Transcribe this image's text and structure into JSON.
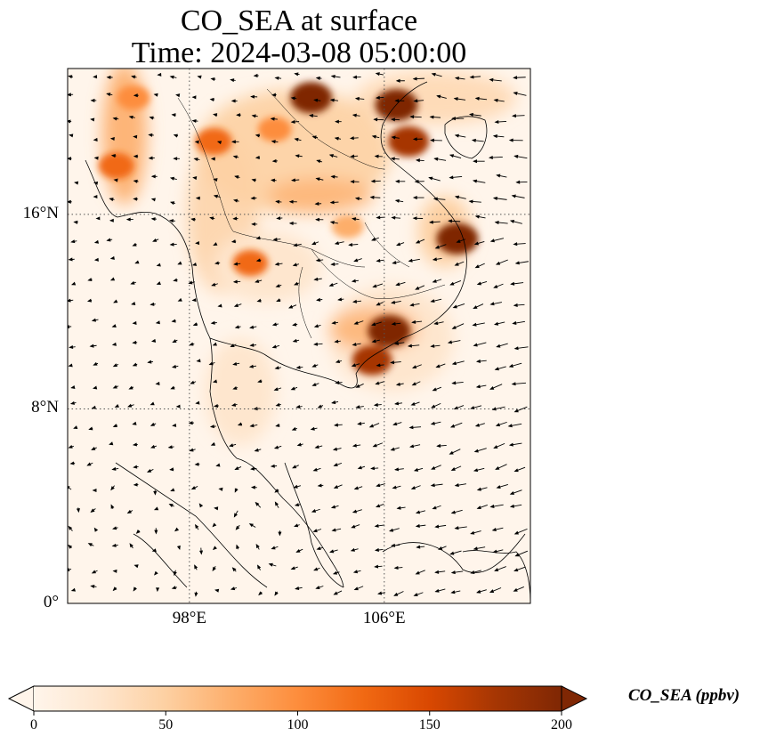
{
  "title": "CO_SEA at surface",
  "subtitle": "Time: 2024-03-08 05:00:00",
  "map": {
    "lon_range": [
      93,
      112
    ],
    "lat_range": [
      0,
      22
    ],
    "lat_ticks": [
      {
        "value": 16,
        "label": "16°N"
      },
      {
        "value": 8,
        "label": "8°N"
      },
      {
        "value": 0,
        "label": "0°"
      }
    ],
    "lon_ticks": [
      {
        "value": 98,
        "label": "98°E"
      },
      {
        "value": 106,
        "label": "106°E"
      }
    ],
    "gridlines": "dotted"
  },
  "colorbar": {
    "label": "CO_SEA (ppbv)",
    "min": 0,
    "max": 200,
    "ticks": [
      {
        "value": 0,
        "label": "0"
      },
      {
        "value": 50,
        "label": "50"
      },
      {
        "value": 100,
        "label": "100"
      },
      {
        "value": 150,
        "label": "150"
      },
      {
        "value": 200,
        "label": "200"
      }
    ],
    "colormap": [
      "#fff5eb",
      "#fee6ce",
      "#fdd0a2",
      "#fdae6b",
      "#fd8d3c",
      "#f16913",
      "#d94801",
      "#a63603",
      "#7f2704"
    ],
    "extend": "both"
  },
  "field_hotspots": [
    {
      "lon": 103.0,
      "lat": 20.8,
      "value": 190
    },
    {
      "lon": 106.5,
      "lat": 20.5,
      "value": 200
    },
    {
      "lon": 107.0,
      "lat": 19.0,
      "value": 180
    },
    {
      "lon": 95.0,
      "lat": 18.0,
      "value": 120
    },
    {
      "lon": 95.7,
      "lat": 20.8,
      "value": 95
    },
    {
      "lon": 99.0,
      "lat": 19.0,
      "value": 130
    },
    {
      "lon": 101.5,
      "lat": 19.5,
      "value": 100
    },
    {
      "lon": 109.0,
      "lat": 15.0,
      "value": 190
    },
    {
      "lon": 106.2,
      "lat": 11.2,
      "value": 200
    },
    {
      "lon": 105.5,
      "lat": 10.0,
      "value": 170
    },
    {
      "lon": 100.5,
      "lat": 14.0,
      "value": 120
    },
    {
      "lon": 104.5,
      "lat": 15.5,
      "value": 80
    }
  ]
}
